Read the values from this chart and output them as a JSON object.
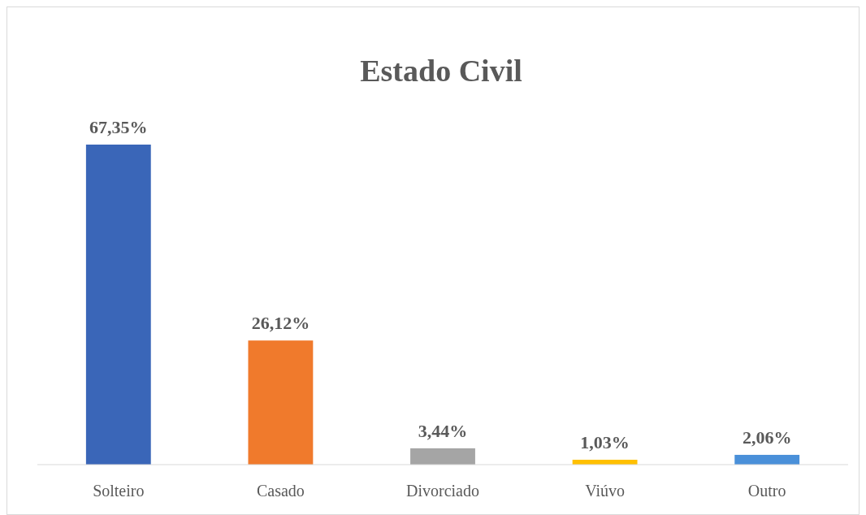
{
  "chart_data": {
    "type": "bar",
    "title": "Estado Civil",
    "categories": [
      "Solteiro",
      "Casado",
      "Divorciado",
      "Viúvo",
      "Outro"
    ],
    "values": [
      67.35,
      26.12,
      3.44,
      1.03,
      2.06
    ],
    "value_labels": [
      "67,35%",
      "26,12%",
      "3,44%",
      "1,03%",
      "2,06%"
    ],
    "colors": [
      "#3a66b8",
      "#f07a2c",
      "#a5a5a5",
      "#ffc000",
      "#4a90d9"
    ]
  }
}
